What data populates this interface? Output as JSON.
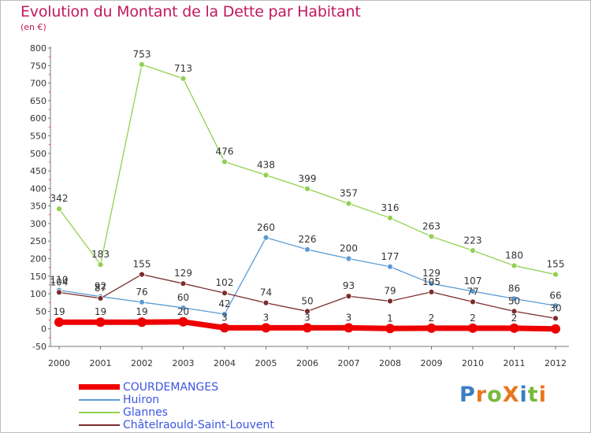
{
  "header": {
    "title": "Evolution du Montant de la Dette par Habitant",
    "unit": "(en €)"
  },
  "chart_data": {
    "type": "line",
    "title": "Evolution du Montant de la Dette par Habitant",
    "subtitle": "(en €)",
    "xlabel": "",
    "ylabel": "",
    "x": [
      "2000",
      "2001",
      "2002",
      "2003",
      "2004",
      "2005",
      "2006",
      "2007",
      "2008",
      "2009",
      "2010",
      "2011",
      "2012"
    ],
    "ylim": [
      -50,
      800
    ],
    "yticks": [
      -50,
      0,
      50,
      100,
      150,
      200,
      250,
      300,
      350,
      400,
      450,
      500,
      550,
      600,
      650,
      700,
      750,
      800
    ],
    "grid": false,
    "legend_position": "bottom-left",
    "series": [
      {
        "name": "COURDEMANGES",
        "color": "#ee0000",
        "values": [
          19,
          19,
          19,
          20,
          3,
          3,
          3,
          3,
          1,
          2,
          2,
          2,
          0
        ],
        "labels": [
          "19",
          "19",
          "19",
          "20",
          "3",
          "3",
          "3",
          "3",
          "1",
          "2",
          "2",
          "2",
          ""
        ]
      },
      {
        "name": "Huiron",
        "color": "#5b9bd5",
        "values": [
          110,
          92,
          76,
          60,
          42,
          260,
          226,
          200,
          177,
          129,
          107,
          86,
          66
        ],
        "labels": [
          "110",
          "92",
          "76",
          "60",
          "42",
          "260",
          "226",
          "200",
          "177",
          "129",
          "107",
          "86",
          "66"
        ]
      },
      {
        "name": "Glannes",
        "color": "#92d050",
        "values": [
          342,
          183,
          753,
          713,
          476,
          438,
          399,
          357,
          316,
          263,
          223,
          180,
          155
        ],
        "labels": [
          "342",
          "183",
          "753",
          "713",
          "476",
          "438",
          "399",
          "357",
          "316",
          "263",
          "223",
          "180",
          "155"
        ]
      },
      {
        "name": "Châtelraould-Saint-Louvent",
        "color": "#7b2c2c",
        "values": [
          104,
          87,
          155,
          129,
          102,
          74,
          50,
          93,
          79,
          105,
          77,
          50,
          30
        ],
        "labels": [
          "104",
          "87",
          "155",
          "129",
          "102",
          "74",
          "50",
          "93",
          "79",
          "105",
          "77",
          "50",
          "30"
        ]
      }
    ]
  },
  "logo": {
    "text": "ProXiti",
    "colors": [
      "#3c7dc4",
      "#e8761e",
      "#78b83c",
      "#e8761e",
      "#3c7dc4",
      "#78b83c",
      "#e8761e"
    ]
  }
}
